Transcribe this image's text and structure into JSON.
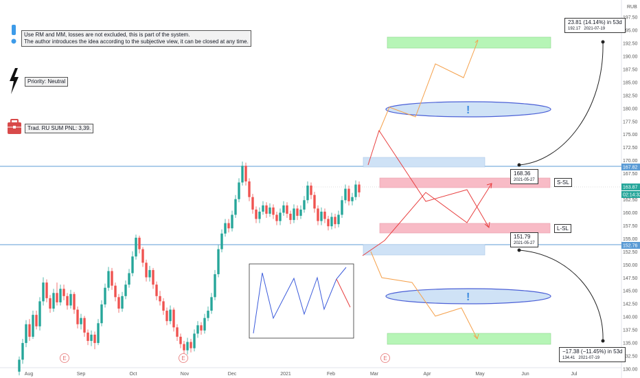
{
  "chart_data": {
    "type": "candlestick",
    "currency": "RUB",
    "x_tick_labels": [
      "Aug",
      "Sep",
      "Oct",
      "Nov",
      "Dec",
      "2021",
      "Feb",
      "Mar",
      "Apr",
      "May",
      "Jun",
      "Jul"
    ],
    "y_ticks": [
      130,
      132.5,
      135,
      137.5,
      140,
      142.5,
      145,
      147.5,
      150,
      152.5,
      155,
      157.5,
      160,
      162.5,
      165,
      167.5,
      170,
      172.5,
      175,
      177.5,
      180,
      182.5,
      185,
      187.5,
      190,
      192.5,
      195,
      197.5
    ],
    "y_tick_labels": [
      "130.00",
      "132.50",
      "135.00",
      "137.50",
      "140.00",
      "142.50",
      "145.00",
      "147.50",
      "150.00",
      "152.50",
      "155.00",
      "157.50",
      "160.00",
      "162.50",
      "165.00",
      "167.50",
      "170.00",
      "172.50",
      "175.00",
      "177.50",
      "180.00",
      "182.50",
      "185.00",
      "187.50",
      "190.00",
      "192.50",
      "195.00",
      "197.50"
    ],
    "ylim": [
      129,
      199
    ],
    "price_markers": [
      {
        "label": "167.82",
        "value": 167.82,
        "color": "#5b9bd5"
      },
      {
        "label": "163.87",
        "value": 163.87,
        "color": "#26a69a"
      },
      {
        "label": "02:14:32",
        "value": 162.0,
        "color": "#26a69a"
      },
      {
        "label": "152.76",
        "value": 152.76,
        "color": "#5b9bd5"
      }
    ],
    "levels": [
      167.82,
      152.76
    ],
    "candles": [
      [
        129.5,
        131.8,
        128.8,
        132.4
      ],
      [
        131.8,
        135.0,
        131.0,
        135.8
      ],
      [
        135.0,
        138.6,
        134.2,
        139.4
      ],
      [
        138.6,
        136.2,
        135.4,
        139.6
      ],
      [
        136.2,
        140.4,
        135.8,
        141.2
      ],
      [
        140.4,
        138.2,
        137.6,
        141.2
      ],
      [
        138.2,
        143.0,
        137.4,
        143.8
      ],
      [
        143.0,
        146.6,
        142.2,
        147.6
      ],
      [
        146.6,
        143.6,
        142.8,
        147.2
      ],
      [
        143.6,
        141.6,
        140.8,
        144.2
      ],
      [
        141.6,
        144.6,
        141.0,
        145.4
      ],
      [
        144.6,
        142.8,
        142.2,
        146.6
      ],
      [
        142.8,
        145.4,
        142.2,
        146.2
      ],
      [
        145.4,
        144.0,
        143.2,
        146.2
      ],
      [
        144.0,
        142.2,
        141.4,
        144.6
      ],
      [
        142.2,
        144.4,
        141.6,
        145.2
      ],
      [
        144.4,
        141.4,
        140.6,
        144.8
      ],
      [
        141.4,
        138.6,
        137.8,
        142.0
      ],
      [
        138.6,
        139.8,
        137.6,
        140.6
      ],
      [
        139.8,
        137.0,
        136.2,
        140.2
      ],
      [
        137.0,
        135.4,
        134.6,
        137.6
      ],
      [
        135.4,
        136.6,
        134.4,
        137.4
      ],
      [
        136.6,
        135.0,
        133.8,
        137.2
      ],
      [
        135.0,
        138.8,
        134.6,
        139.6
      ],
      [
        138.8,
        142.4,
        138.2,
        143.2
      ],
      [
        142.4,
        145.6,
        141.8,
        146.4
      ],
      [
        145.6,
        148.8,
        145.0,
        149.6
      ],
      [
        148.8,
        146.0,
        145.2,
        149.4
      ],
      [
        146.0,
        143.8,
        143.0,
        146.6
      ],
      [
        143.8,
        141.6,
        140.8,
        144.4
      ],
      [
        141.6,
        144.0,
        141.0,
        144.8
      ],
      [
        144.0,
        146.2,
        143.4,
        147.0
      ],
      [
        146.2,
        148.4,
        145.6,
        149.2
      ],
      [
        148.4,
        151.6,
        147.8,
        152.6
      ],
      [
        151.6,
        155.2,
        151.0,
        155.8
      ],
      [
        155.2,
        153.0,
        152.2,
        155.6
      ],
      [
        153.0,
        150.4,
        149.6,
        153.4
      ],
      [
        150.4,
        147.6,
        146.8,
        151.0
      ],
      [
        147.6,
        149.0,
        146.8,
        149.8
      ],
      [
        149.0,
        146.2,
        145.4,
        149.4
      ],
      [
        146.2,
        144.0,
        143.2,
        146.8
      ],
      [
        144.0,
        143.0,
        142.2,
        145.0
      ],
      [
        143.0,
        141.2,
        140.4,
        143.6
      ],
      [
        141.2,
        139.2,
        138.4,
        141.8
      ],
      [
        139.2,
        141.4,
        138.6,
        142.2
      ],
      [
        141.4,
        138.0,
        137.2,
        141.8
      ],
      [
        138.0,
        136.2,
        135.4,
        138.6
      ],
      [
        136.2,
        134.8,
        134.0,
        136.8
      ],
      [
        134.8,
        133.6,
        132.8,
        135.4
      ],
      [
        133.6,
        135.2,
        132.8,
        136.0
      ],
      [
        135.2,
        134.0,
        133.2,
        135.8
      ],
      [
        134.0,
        136.8,
        133.4,
        137.6
      ],
      [
        136.8,
        138.4,
        136.0,
        139.2
      ],
      [
        138.4,
        137.4,
        136.6,
        139.0
      ],
      [
        137.4,
        139.8,
        136.8,
        140.6
      ],
      [
        139.8,
        141.2,
        139.2,
        142.0
      ],
      [
        141.2,
        143.8,
        140.6,
        144.6
      ],
      [
        143.8,
        148.2,
        143.2,
        149.0
      ],
      [
        148.2,
        153.0,
        147.6,
        153.8
      ],
      [
        153.0,
        156.0,
        152.4,
        156.8
      ],
      [
        156.0,
        158.0,
        155.4,
        158.8
      ],
      [
        158.0,
        157.0,
        156.2,
        158.8
      ],
      [
        157.0,
        159.6,
        156.4,
        160.4
      ],
      [
        159.6,
        162.6,
        159.0,
        163.4
      ],
      [
        162.6,
        165.8,
        162.0,
        166.6
      ],
      [
        165.8,
        169.0,
        165.2,
        169.8
      ],
      [
        169.0,
        166.0,
        165.2,
        169.6
      ],
      [
        166.0,
        163.0,
        162.2,
        166.6
      ],
      [
        163.0,
        160.6,
        159.8,
        163.6
      ],
      [
        160.6,
        158.8,
        158.0,
        161.2
      ],
      [
        158.8,
        160.2,
        158.0,
        161.0
      ],
      [
        160.2,
        161.4,
        159.6,
        162.2
      ],
      [
        161.4,
        159.8,
        159.0,
        162.0
      ],
      [
        159.8,
        161.0,
        159.2,
        161.8
      ],
      [
        161.0,
        159.6,
        158.8,
        161.6
      ],
      [
        159.6,
        158.4,
        157.6,
        160.2
      ],
      [
        158.4,
        160.0,
        157.6,
        160.8
      ],
      [
        160.0,
        161.4,
        159.4,
        162.2
      ],
      [
        161.4,
        159.8,
        159.0,
        162.0
      ],
      [
        159.8,
        158.6,
        157.8,
        160.4
      ],
      [
        158.6,
        160.8,
        158.0,
        161.6
      ],
      [
        160.8,
        159.4,
        158.6,
        161.4
      ],
      [
        159.4,
        160.6,
        158.8,
        161.4
      ],
      [
        160.6,
        162.4,
        160.0,
        163.2
      ],
      [
        162.4,
        165.2,
        161.8,
        166.0
      ],
      [
        165.2,
        163.4,
        162.6,
        165.8
      ],
      [
        163.4,
        160.8,
        160.0,
        164.0
      ],
      [
        160.8,
        158.4,
        157.6,
        161.4
      ],
      [
        158.4,
        160.2,
        157.6,
        161.0
      ],
      [
        160.2,
        158.8,
        158.0,
        160.8
      ],
      [
        158.8,
        157.4,
        156.6,
        159.4
      ],
      [
        157.4,
        159.2,
        156.8,
        160.0
      ],
      [
        159.2,
        157.8,
        157.0,
        159.8
      ],
      [
        157.8,
        159.6,
        157.2,
        160.4
      ],
      [
        159.6,
        162.4,
        159.0,
        163.2
      ],
      [
        162.4,
        164.6,
        161.8,
        165.4
      ],
      [
        164.6,
        162.2,
        161.4,
        165.2
      ],
      [
        162.2,
        163.0,
        161.4,
        163.8
      ],
      [
        163.0,
        165.4,
        162.4,
        166.2
      ],
      [
        165.4,
        163.9,
        163.0,
        166.0
      ]
    ]
  },
  "annotations": {
    "note_rm": "Use RM and MM, losses are not excluded, this is part of the system.",
    "note_author": "The author introduces the idea according to the subjective view, it can be closed at any time.",
    "priority": "Priority: Neutral",
    "pnl": "Trad. RU SUM PNL: 3,39.",
    "s_sl": "S-SL",
    "l_sl": "L-SL",
    "upper_callout": {
      "main": "23.81 (14.14%) in 53d",
      "price": "192.17",
      "date": "2021-07-19"
    },
    "lower_callout": {
      "main": "−17.38 (−11.45%) in 53d",
      "price": "134.41",
      "date": "2021-07-19"
    },
    "upper_anchor": {
      "price": "168.36",
      "date": "2021-05-27"
    },
    "lower_anchor": {
      "price": "151.79",
      "date": "2021-05-27"
    },
    "earnings_marker": "E",
    "exclamation": "!"
  },
  "colors": {
    "up": "#26a69a",
    "down": "#ef5350",
    "blue_line": "#5b9bd5",
    "red_zone": "#f8bbc6",
    "green_zone": "#b6f5b6",
    "blue_zone": "#cfe2f6",
    "ellipse": "#4a5fd6",
    "orange_path": "#f5a04a",
    "red_path": "#e84040"
  }
}
